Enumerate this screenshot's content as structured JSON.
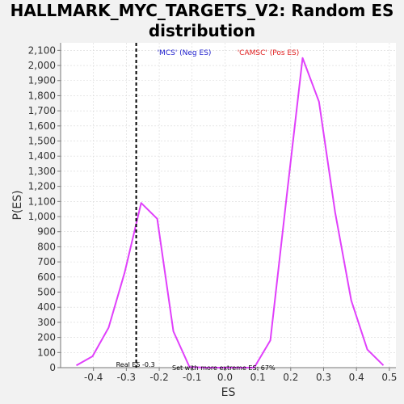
{
  "chart_data": {
    "type": "line",
    "title": "HALLMARK_MYC_TARGETS_V2: Random ES distribution",
    "xlabel": "ES",
    "ylabel": "P(ES)",
    "xlim": [
      -0.5,
      0.52
    ],
    "ylim": [
      0,
      2150
    ],
    "x_ticks": [
      -0.4,
      -0.3,
      -0.2,
      -0.1,
      0.0,
      0.1,
      0.2,
      0.3,
      0.4,
      0.5
    ],
    "x_tick_labels": [
      "-0.4",
      "-0.3",
      "-0.2",
      "-0.1",
      "0.0",
      "0.1",
      "0.2",
      "0.3",
      "0.4",
      "0.5"
    ],
    "y_ticks": [
      0,
      100,
      200,
      300,
      400,
      500,
      600,
      700,
      800,
      900,
      1000,
      1100,
      1200,
      1300,
      1400,
      1500,
      1600,
      1700,
      1800,
      1900,
      2000,
      2100
    ],
    "y_tick_labels": [
      "0",
      "100",
      "200",
      "300",
      "400",
      "500",
      "600",
      "700",
      "800",
      "900",
      "1,000",
      "1,100",
      "1,200",
      "1,300",
      "1,400",
      "1,500",
      "1,600",
      "1,700",
      "1,800",
      "1,900",
      "2,000",
      "2,100"
    ],
    "grid": true,
    "series": [
      {
        "color": "#e040fb",
        "x": [
          -0.452,
          -0.403,
          -0.354,
          -0.305,
          -0.255,
          -0.206,
          -0.157,
          -0.108,
          -0.059,
          -0.01,
          0.04,
          0.089,
          0.138,
          0.187,
          0.236,
          0.286,
          0.335,
          0.384,
          0.433,
          0.482
        ],
        "y": [
          15,
          75,
          265,
          630,
          1090,
          985,
          240,
          5,
          0,
          0,
          0,
          0,
          180,
          1120,
          2050,
          1760,
          1030,
          445,
          120,
          15
        ]
      }
    ],
    "reference_line": {
      "x": -0.27,
      "style": "dashed",
      "color": "#000000"
    },
    "legend": [
      {
        "label": "'MCS' (Neg ES)",
        "color": "#1a1acc"
      },
      {
        "label": "'CAMSC' (Pos ES)",
        "color": "#e02020"
      }
    ],
    "annotations": [
      {
        "text": "Real ES -0.3",
        "x": -0.27,
        "y": 0
      },
      {
        "text": "Set with more extreme ES: 67%",
        "x": 0.02,
        "y": 0
      }
    ]
  }
}
